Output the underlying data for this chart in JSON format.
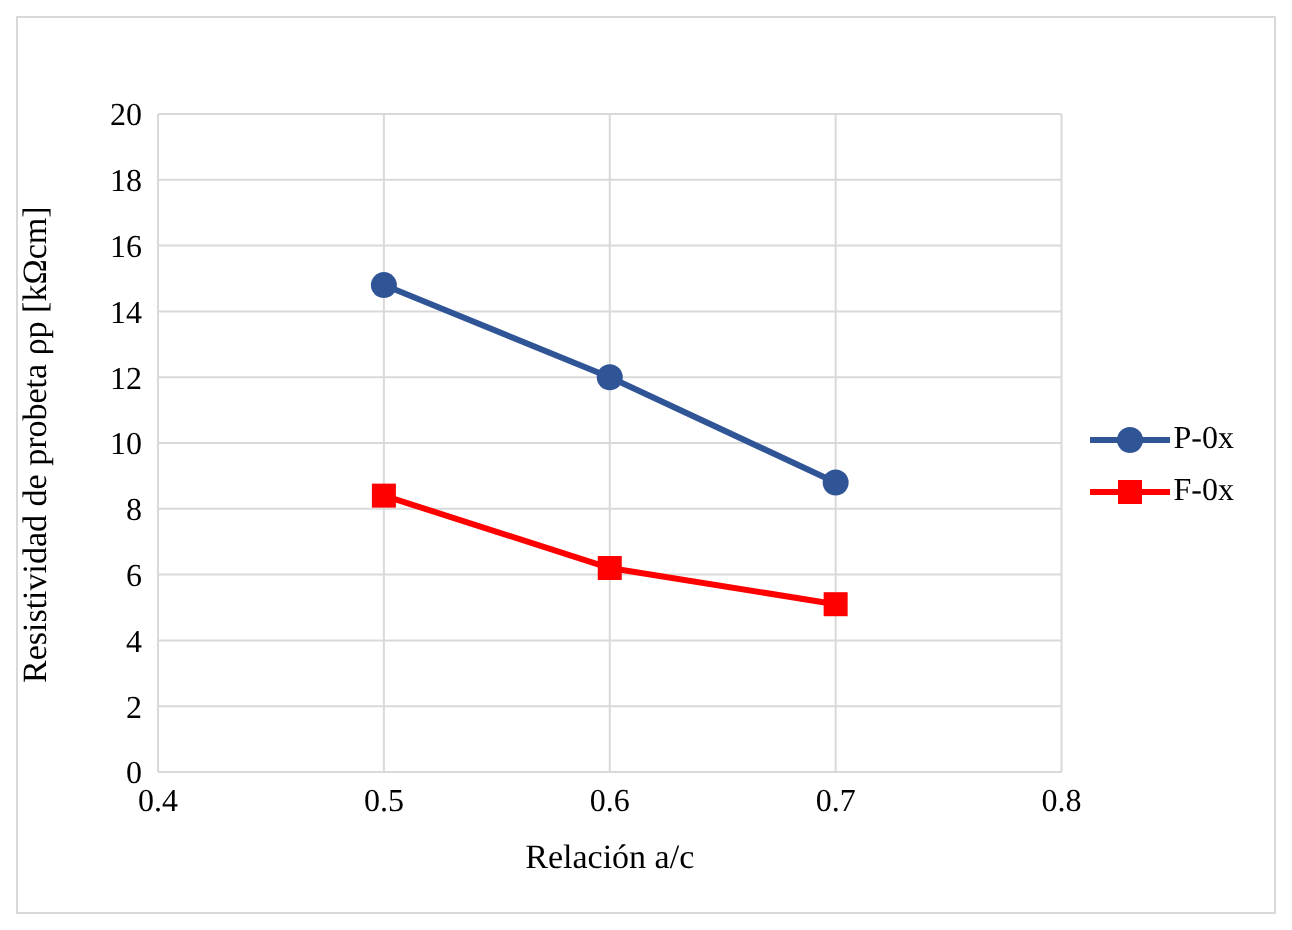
{
  "chart_data": {
    "type": "line",
    "ylabel": "Resistividad de probeta ρp [kΩcm]",
    "xlabel": "Relación a/c",
    "x": [
      0.5,
      0.6,
      0.7
    ],
    "xlim": [
      0.4,
      0.8
    ],
    "xticks": [
      0.4,
      0.5,
      0.6,
      0.7,
      0.8
    ],
    "ylim": [
      0,
      20
    ],
    "yticks": [
      0,
      2,
      4,
      6,
      8,
      10,
      12,
      14,
      16,
      18,
      20
    ],
    "grid": true,
    "legend": "right",
    "series": [
      {
        "name": "P-0x",
        "color": "#2f5597",
        "marker": "circle",
        "values": [
          14.8,
          12.0,
          8.8
        ]
      },
      {
        "name": "F-0x",
        "color": "#ff0000",
        "marker": "square",
        "values": [
          8.4,
          6.2,
          5.1
        ]
      }
    ]
  }
}
